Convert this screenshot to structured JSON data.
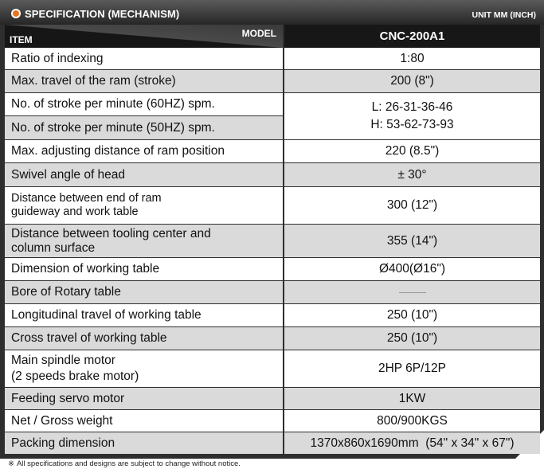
{
  "header": {
    "title": "SPECIFICATION (MECHANISM)",
    "unit": "UNIT MM (INCH)"
  },
  "columns": {
    "item": "ITEM",
    "model": "MODEL",
    "model_name": "CNC-200A1"
  },
  "rows": [
    {
      "item": "Ratio of indexing",
      "value": "1:80"
    },
    {
      "item": "Max. travel of the ram (stroke)",
      "value": "200 (8\")"
    },
    {
      "item": "No. of stroke per minute (60HZ) spm.",
      "value": "L: 26-31-36-46"
    },
    {
      "item": "No. of stroke per minute (50HZ) spm.",
      "value": "H: 53-62-73-93"
    },
    {
      "item": "Max. adjusting distance of ram position",
      "value": "220 (8.5\")"
    },
    {
      "item": "Swivel angle of head",
      "value": "± 30°"
    },
    {
      "item_line1": "Distance between end of ram",
      "item_line2": "guideway and work table",
      "value": "300 (12\")"
    },
    {
      "item_line1": "Distance between tooling center and",
      "item_line2": "column surface",
      "value": "355 (14\")"
    },
    {
      "item": "Dimension of working table",
      "value": "Ø400(Ø16\")"
    },
    {
      "item": "Bore of Rotary table",
      "value": ""
    },
    {
      "item": "Longitudinal travel of working table",
      "value": "250 (10\")"
    },
    {
      "item": "Cross travel of working table",
      "value": "250 (10\")"
    },
    {
      "item_line1": "Main spindle motor",
      "item_line2": "(2 speeds brake motor)",
      "value": "2HP 6P/12P"
    },
    {
      "item": "Feeding servo motor",
      "value": "1KW"
    },
    {
      "item": "Net / Gross weight",
      "value": "800/900KGS"
    },
    {
      "item": "Packing dimension",
      "value": "1370x860x1690mm  (54\" x 34\" x 67\")"
    }
  ],
  "footnote": {
    "mark": "※",
    "text": "All specifications and designs are subject to change without notice."
  }
}
